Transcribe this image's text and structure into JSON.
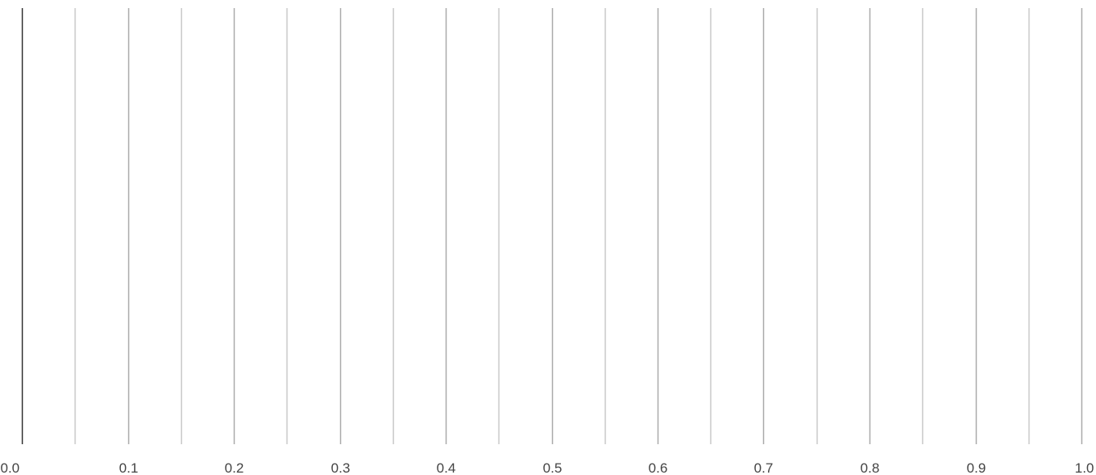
{
  "chart_data": {
    "type": "line",
    "title": "",
    "xlabel": "",
    "ylabel": "",
    "xlim": [
      0,
      1
    ],
    "x_tick_labels": [
      "0.0",
      "0.1",
      "0.2",
      "0.3",
      "0.4",
      "0.5",
      "0.6",
      "0.7",
      "0.8",
      "0.9",
      "1.0"
    ],
    "x_minor_gridlines": [
      0.05,
      0.15,
      0.25,
      0.35,
      0.45,
      0.55,
      0.65,
      0.75,
      0.85,
      0.95
    ],
    "grid": true,
    "series": [],
    "colors": {
      "baseline": "#333333",
      "major_grid": "#aaaaaa",
      "minor_grid": "#c8c8c8",
      "tick_text": "#444444"
    }
  }
}
